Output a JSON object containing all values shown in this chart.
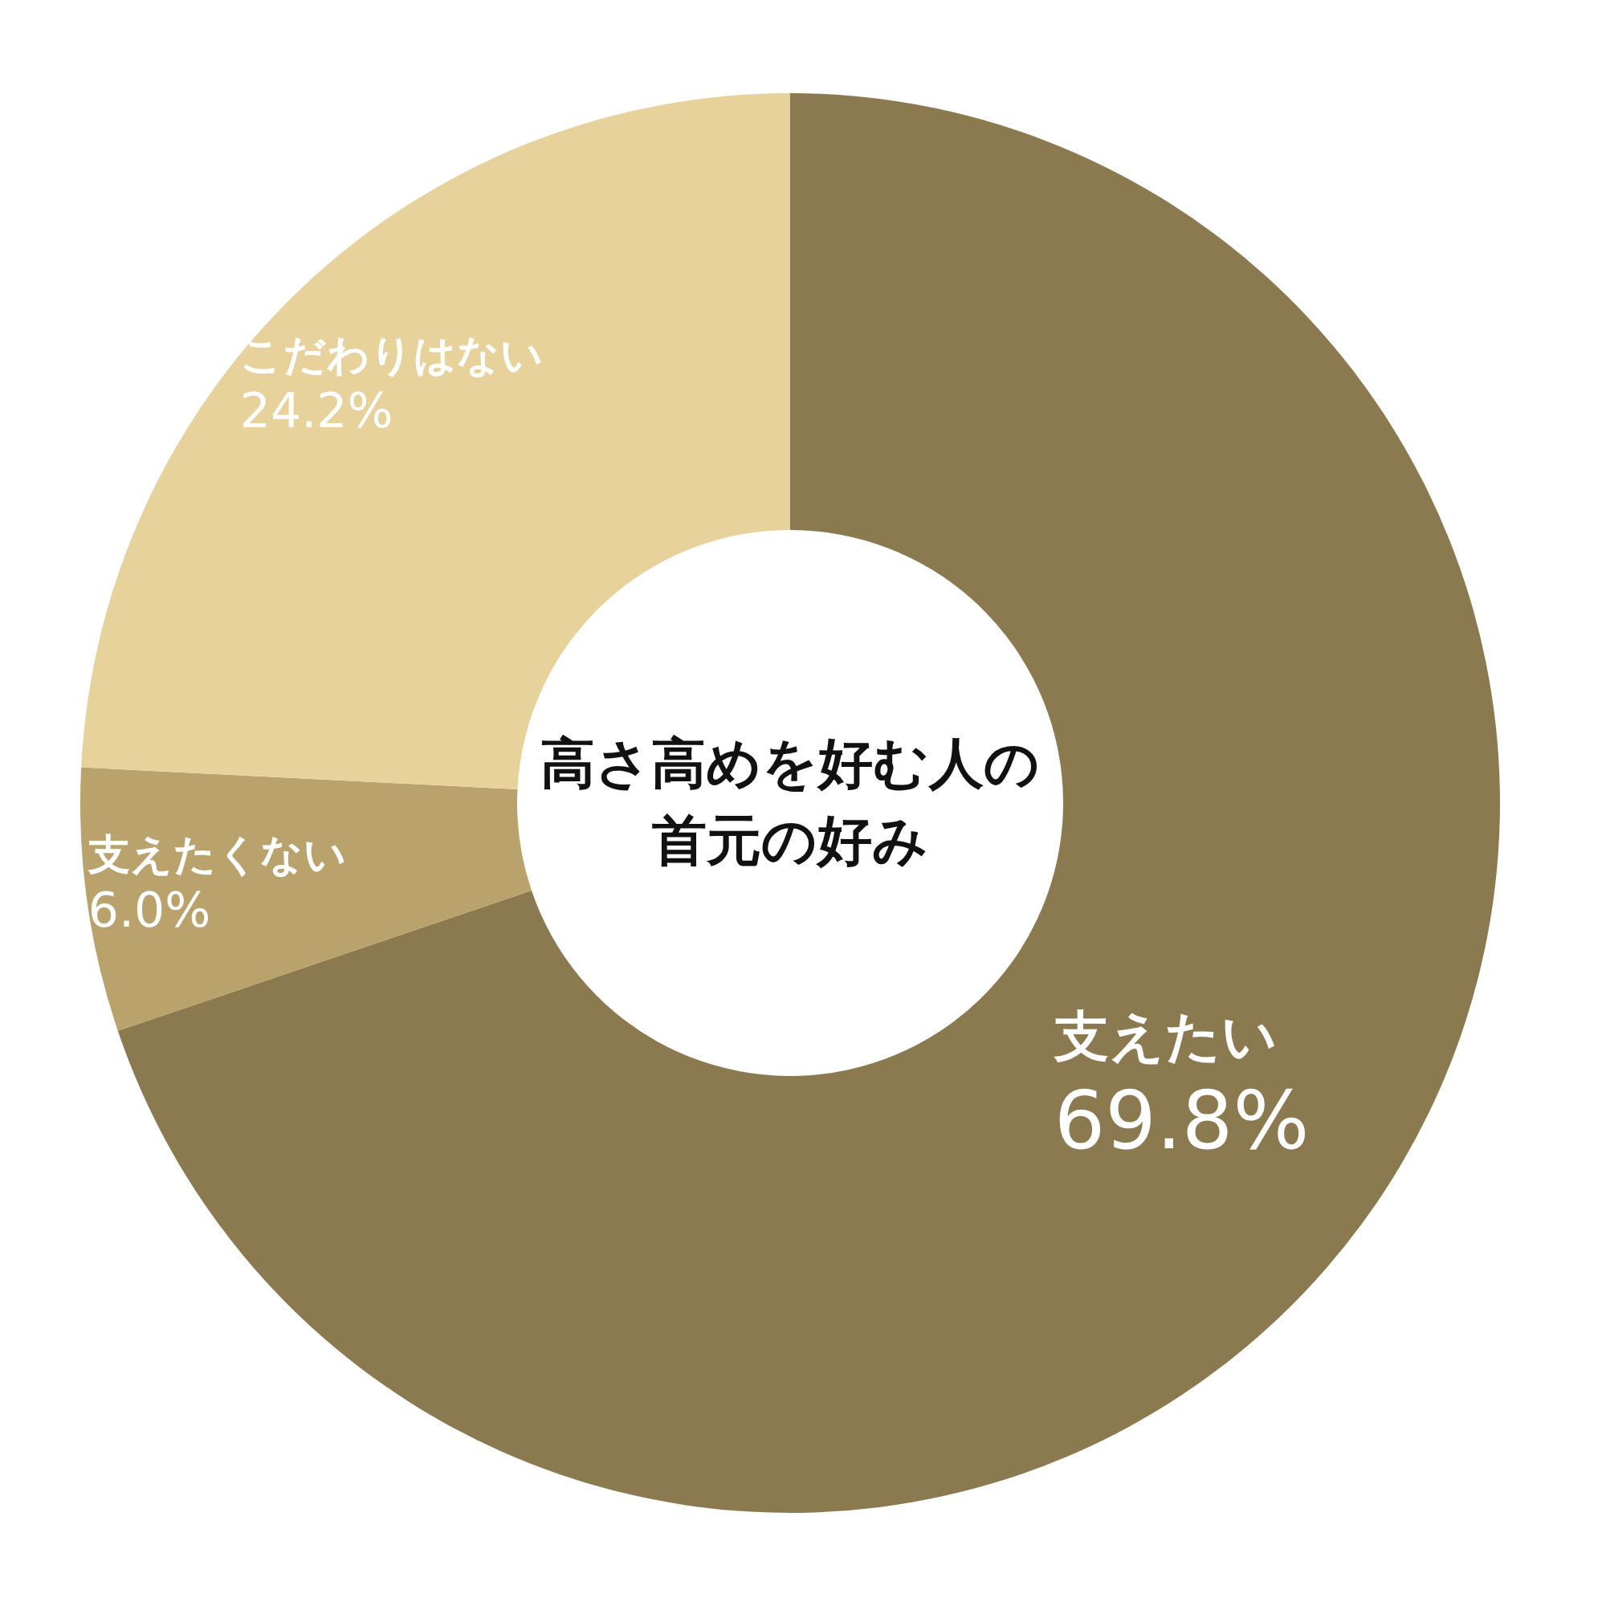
{
  "chart_data": {
    "type": "donut",
    "title": "高さ高めを好む人の首元の好み",
    "categories": [
      "支えたい",
      "支えたくない",
      "こだわりはない"
    ],
    "values": [
      69.8,
      6.0,
      24.2
    ],
    "colors": [
      "#8b7a50",
      "#b9a26c",
      "#e8d29c"
    ],
    "value_labels": [
      "69.8%",
      "6.0%",
      "24.2%"
    ],
    "legend": false
  }
}
